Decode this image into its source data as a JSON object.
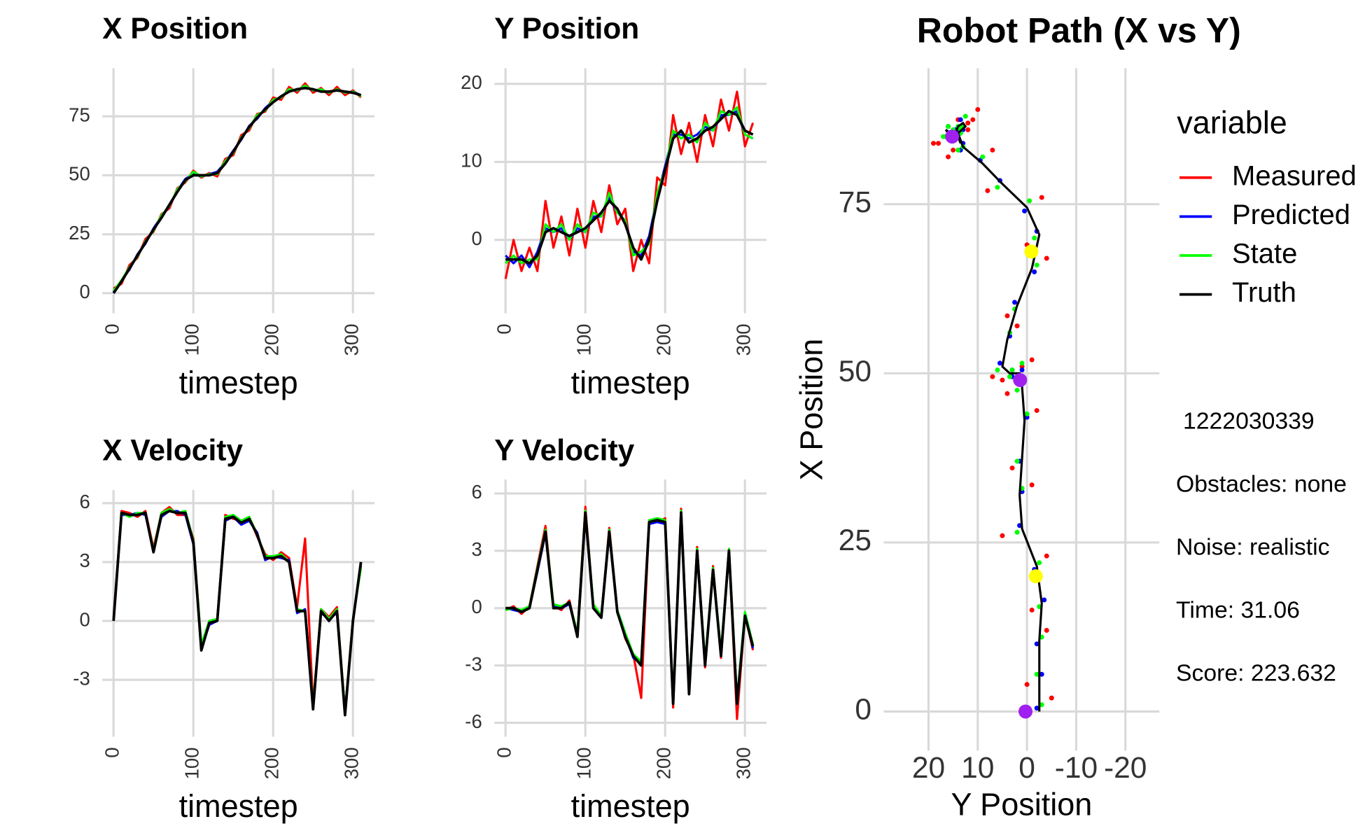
{
  "chart_data": [
    {
      "type": "line",
      "title": "X Position",
      "x_label": "timestep",
      "x": [
        0,
        10,
        20,
        30,
        40,
        50,
        60,
        70,
        80,
        90,
        100,
        110,
        120,
        130,
        140,
        150,
        160,
        170,
        180,
        190,
        200,
        210,
        220,
        230,
        240,
        250,
        260,
        270,
        280,
        290,
        300,
        310
      ],
      "series": [
        {
          "color": "#ff0000",
          "values": [
            2,
            4,
            12,
            15,
            23,
            26,
            33.5,
            36,
            44.5,
            47,
            52,
            49,
            51,
            49.5,
            57,
            58.5,
            67,
            69,
            76,
            77,
            83,
            82,
            87.5,
            85,
            89,
            85,
            87,
            84,
            87.5,
            84,
            86,
            83
          ]
        },
        {
          "color": "#0000ff",
          "values": [
            0.5,
            5.5,
            10,
            16.5,
            21,
            27.5,
            32.5,
            37,
            43.5,
            48.5,
            50.5,
            49.5,
            50.5,
            51.5,
            55.5,
            60.5,
            65,
            71,
            74,
            78.5,
            81.5,
            83,
            86,
            86,
            87.5,
            86,
            86,
            85,
            86.5,
            85,
            85.5,
            84
          ]
        },
        {
          "color": "#00ff00",
          "values": [
            1,
            5.5,
            11,
            15.5,
            22,
            26.5,
            33,
            37,
            44,
            47.5,
            51.5,
            49.5,
            50.5,
            50.5,
            56,
            59.5,
            66,
            70,
            75.5,
            77.5,
            82,
            83,
            86.5,
            86,
            88,
            86,
            86.5,
            85,
            86.5,
            85,
            85.5,
            83.5
          ]
        },
        {
          "color": "#000000",
          "values": [
            0,
            5,
            10.5,
            16,
            21.5,
            27,
            32,
            37.5,
            43,
            48,
            50,
            50,
            50,
            51,
            55,
            60,
            65.5,
            70.5,
            74.5,
            78,
            81,
            83.5,
            85.5,
            86.5,
            87,
            86.5,
            85.5,
            85.5,
            86,
            85.5,
            85,
            84
          ]
        }
      ],
      "xlim": [
        -14,
        327
      ],
      "ylim": [
        -8.5,
        95.4
      ],
      "xticks": [
        0,
        100,
        200,
        300
      ],
      "yticks": [
        0,
        25,
        50,
        75
      ],
      "grid": true
    },
    {
      "type": "line",
      "title": "Y Position",
      "x_label": "timestep",
      "x": [
        0,
        10,
        20,
        30,
        40,
        50,
        60,
        70,
        80,
        90,
        100,
        110,
        120,
        130,
        140,
        150,
        160,
        170,
        180,
        190,
        200,
        210,
        220,
        230,
        240,
        250,
        260,
        270,
        280,
        290,
        300,
        310
      ],
      "series": [
        {
          "color": "#ff0000",
          "values": [
            -5,
            0,
            -4,
            -1,
            -4,
            5,
            -1,
            3,
            -2,
            4,
            -1,
            5,
            1,
            7,
            2,
            4,
            -4,
            0,
            -3,
            8,
            7,
            16,
            11,
            15,
            10,
            16,
            12,
            18,
            14,
            19,
            12,
            15
          ]
        },
        {
          "color": "#0000ff",
          "values": [
            -2,
            -3,
            -2,
            -3.5,
            -1.5,
            1.5,
            1,
            1.5,
            0,
            1.5,
            1,
            3,
            3,
            5.5,
            3.5,
            2.5,
            -1.5,
            -2,
            0.5,
            5.5,
            9.5,
            13.5,
            13.5,
            13,
            13.5,
            14.5,
            14,
            16,
            16,
            16.5,
            13.5,
            13
          ]
        },
        {
          "color": "#00ff00",
          "values": [
            -3,
            -2,
            -3,
            -2.5,
            -2.5,
            2,
            1,
            2,
            0,
            2,
            1,
            3.5,
            3,
            6,
            3.5,
            2.5,
            -2,
            -1.5,
            -0.5,
            6,
            9,
            14,
            13,
            13.5,
            12.5,
            15,
            14,
            16.5,
            16,
            17,
            13.5,
            13
          ]
        },
        {
          "color": "#000000",
          "values": [
            -2.5,
            -2.5,
            -2.5,
            -3,
            -2,
            1,
            1.5,
            1,
            0.5,
            1,
            1.5,
            2.5,
            3.5,
            5,
            4,
            2,
            -1,
            -2.5,
            0,
            5,
            9,
            13,
            14,
            12.5,
            13,
            14,
            14.5,
            15.5,
            16.5,
            16,
            14,
            13.5
          ]
        }
      ],
      "xlim": [
        -14,
        327
      ],
      "ylim": [
        -9.4,
        22
      ],
      "xticks": [
        0,
        100,
        200,
        300
      ],
      "yticks": [
        0,
        10,
        20
      ],
      "grid": true
    },
    {
      "type": "line",
      "title": "X Velocity",
      "x_label": "timestep",
      "x": [
        0,
        10,
        20,
        30,
        40,
        50,
        60,
        70,
        80,
        90,
        100,
        110,
        120,
        130,
        140,
        150,
        160,
        170,
        180,
        190,
        200,
        210,
        220,
        230,
        240,
        250,
        260,
        270,
        280,
        290,
        300,
        310
      ],
      "series": [
        {
          "color": "#ff0000",
          "values": [
            0.2,
            5.6,
            5.5,
            5.3,
            5.6,
            3.7,
            5.5,
            5.8,
            5.4,
            5.4,
            4.2,
            -1.3,
            0,
            0.1,
            5.4,
            5.2,
            5.1,
            5.3,
            4.3,
            3.4,
            3.1,
            3.5,
            3.2,
            0.7,
            4.2,
            -4.3,
            0.6,
            0.2,
            0.7,
            -4.6,
            0.1,
            2.8
          ]
        },
        {
          "color": "#0000ff",
          "values": [
            0,
            5.4,
            5.4,
            5.5,
            5.4,
            3.6,
            5.3,
            5.6,
            5.6,
            5.4,
            3.9,
            -1.4,
            -0.2,
            0,
            5.1,
            5.3,
            4.9,
            5.1,
            4.5,
            3.1,
            3.3,
            3.2,
            3.1,
            0.4,
            0.6,
            -4.4,
            0.4,
            0.1,
            0.4,
            -4.7,
            0,
            2.9
          ]
        },
        {
          "color": "#00ff00",
          "values": [
            0.1,
            5.5,
            5.3,
            5.5,
            5.5,
            3.6,
            5.5,
            5.7,
            5.5,
            5.6,
            4.1,
            -1.2,
            0,
            0.1,
            5.3,
            5.4,
            5.1,
            5.3,
            4.4,
            3.3,
            3.3,
            3.4,
            3,
            0.6,
            0.5,
            -4.3,
            0.6,
            0.1,
            0.6,
            -4.6,
            0.1,
            2.7
          ]
        },
        {
          "color": "#000000",
          "values": [
            0,
            5.5,
            5.4,
            5.4,
            5.5,
            3.5,
            5.4,
            5.6,
            5.5,
            5.5,
            4,
            -1.5,
            -0.1,
            0,
            5.2,
            5.3,
            5,
            5.2,
            4.4,
            3.2,
            3.2,
            3.3,
            3,
            0.5,
            0.5,
            -4.5,
            0.5,
            0,
            0.5,
            -4.8,
            0,
            3
          ]
        }
      ],
      "xlim": [
        -14,
        327
      ],
      "ylim": [
        -5.9,
        6.67
      ],
      "xticks": [
        0,
        100,
        200,
        300
      ],
      "yticks": [
        -3,
        0,
        3,
        6
      ],
      "grid": true
    },
    {
      "type": "line",
      "title": "Y Velocity",
      "x_label": "timestep",
      "x": [
        0,
        10,
        20,
        30,
        40,
        50,
        60,
        70,
        80,
        90,
        100,
        110,
        120,
        130,
        140,
        150,
        160,
        170,
        180,
        190,
        200,
        210,
        220,
        230,
        240,
        250,
        260,
        270,
        280,
        290,
        300,
        310
      ],
      "series": [
        {
          "color": "#ff0000",
          "values": [
            -0.1,
            0.1,
            -0.3,
            0.1,
            2.2,
            4.3,
            0.1,
            -0.1,
            0.4,
            -1.4,
            5.3,
            0.1,
            -0.4,
            4.2,
            -0.1,
            -1.6,
            -2.4,
            -4.7,
            4.6,
            4.5,
            4.7,
            -5.2,
            5.2,
            -4.4,
            3.2,
            -3.1,
            2.2,
            -2.6,
            3.1,
            -5.8,
            -0.3,
            -2.2
          ]
        },
        {
          "color": "#0000ff",
          "values": [
            0,
            -0.1,
            -0.2,
            0,
            1.9,
            3.9,
            0.1,
            0,
            0.2,
            -1.4,
            4.8,
            0.1,
            -0.5,
            3.9,
            -0.2,
            -1.4,
            -2.6,
            -2.9,
            4.4,
            4.5,
            4.4,
            -4.9,
            4.9,
            -4.4,
            2.9,
            -2.9,
            1.9,
            -2.4,
            2.9,
            -4.9,
            -0.3,
            -2.1
          ]
        },
        {
          "color": "#00ff00",
          "values": [
            -0.1,
            0,
            -0.1,
            0.1,
            2.1,
            4.1,
            0.2,
            0.1,
            0.3,
            -1.3,
            5.1,
            0.2,
            -0.4,
            4.1,
            -0.1,
            -1.3,
            -2.4,
            -2.8,
            4.6,
            4.7,
            4.6,
            -4.8,
            5.1,
            -4.3,
            3.1,
            -2.8,
            2.1,
            -2.3,
            3.1,
            -4.8,
            -0.2,
            -1.9
          ]
        },
        {
          "color": "#000000",
          "values": [
            0,
            0,
            -0.2,
            0,
            2,
            4,
            0,
            0,
            0.3,
            -1.5,
            5,
            0,
            -0.5,
            4,
            -0.2,
            -1.5,
            -2.5,
            -3,
            4.5,
            4.6,
            4.5,
            -5,
            5,
            -4.5,
            3,
            -3,
            2,
            -2.5,
            3,
            -5,
            -0.4,
            -2
          ]
        }
      ],
      "xlim": [
        -14,
        327
      ],
      "ylim": [
        -6.73,
        6.73
      ],
      "xticks": [
        0,
        100,
        200,
        300
      ],
      "yticks": [
        -6,
        -3,
        0,
        3,
        6
      ],
      "grid": true
    },
    {
      "type": "scatter",
      "title": "Robot Path (X vs Y)",
      "x_label": "Y Position",
      "y_label": "X Position",
      "legend_title": "variable",
      "series": [
        {
          "name": "Measured",
          "color": "#ff0000",
          "x": [
            -5,
            0,
            -4,
            -1,
            -4,
            5,
            -1,
            3,
            -2,
            4,
            -1,
            5,
            1,
            7,
            2,
            4,
            -4,
            0,
            -3,
            8,
            7,
            16,
            11,
            15,
            10,
            16,
            12,
            18,
            14,
            19,
            12,
            15
          ],
          "values": [
            2,
            4,
            12,
            15,
            23,
            26,
            33.5,
            36,
            44.5,
            47,
            52,
            49,
            51,
            49.5,
            57,
            58.5,
            67,
            69,
            76,
            77,
            83,
            82,
            87.5,
            85,
            89,
            85,
            87,
            84,
            87.5,
            84,
            86,
            83
          ]
        },
        {
          "name": "Predicted",
          "color": "#0000ff",
          "x": [
            -2,
            -3,
            -2,
            -3.5,
            -1.5,
            1.5,
            1,
            1.5,
            0,
            1.5,
            1,
            3,
            3,
            5.5,
            3.5,
            2.5,
            -1.5,
            -2,
            0.5,
            5.5,
            9.5,
            13.5,
            13.5,
            13,
            13.5,
            14.5,
            14,
            16,
            16,
            16.5,
            13.5,
            13
          ],
          "values": [
            0.5,
            5.5,
            10,
            16.5,
            21,
            27.5,
            32.5,
            37,
            43.5,
            48.5,
            50.5,
            49.5,
            50.5,
            51.5,
            55.5,
            60.5,
            65,
            71,
            74,
            78.5,
            81.5,
            83,
            86,
            86,
            87.5,
            86,
            86,
            85,
            86.5,
            85,
            85.5,
            84
          ]
        },
        {
          "name": "State",
          "color": "#00ff00",
          "x": [
            -3,
            -2,
            -3,
            -2.5,
            -2.5,
            2,
            1,
            2,
            0,
            2,
            1,
            3.5,
            3,
            6,
            3.5,
            2.5,
            -2,
            -1.5,
            -0.5,
            6,
            9,
            14,
            13,
            13.5,
            12.5,
            15,
            14,
            16.5,
            16,
            17,
            13.5,
            13
          ],
          "values": [
            1,
            5.5,
            11,
            15.5,
            22,
            26.5,
            33,
            37,
            44,
            47.5,
            51.5,
            49.5,
            50.5,
            50.5,
            56,
            59.5,
            66,
            70,
            75.5,
            77.5,
            82,
            83,
            86.5,
            86,
            88,
            86,
            86.5,
            85,
            86.5,
            85,
            85.5,
            83.5
          ]
        },
        {
          "name": "Truth",
          "color": "#000000",
          "mode": "line",
          "x": [
            -2.5,
            -2.5,
            -2.5,
            -3,
            -2,
            1,
            1.5,
            1,
            0.5,
            1,
            1.5,
            2.5,
            3.5,
            5,
            4,
            2,
            -1,
            -2.5,
            0,
            5,
            9,
            13,
            14,
            12.5,
            13,
            14,
            14.5,
            15.5,
            16.5,
            16,
            14,
            13.5
          ],
          "values": [
            0,
            5,
            10.5,
            16,
            21.5,
            27,
            32,
            37.5,
            43,
            48,
            50,
            50,
            50,
            51,
            55,
            60,
            65.5,
            70.5,
            74.5,
            78,
            81,
            83.5,
            85.5,
            86.5,
            87,
            86.5,
            85.5,
            85.5,
            86,
            85.5,
            85,
            84
          ]
        }
      ],
      "highlights": [
        {
          "x": 0.3,
          "y": 0,
          "color": "#a020f0"
        },
        {
          "x": 1.4,
          "y": 49,
          "color": "#a020f0"
        },
        {
          "x": 15.2,
          "y": 85,
          "color": "#a020f0"
        },
        {
          "x": -0.9,
          "y": 68,
          "color": "#ffff00"
        },
        {
          "x": -1.8,
          "y": 20,
          "color": "#ffff00"
        }
      ],
      "annotations": [
        "1222030339",
        "Obstacles: none",
        "Noise: realistic",
        "Time: 31.06",
        "Score: 223.632"
      ],
      "xlim": [
        29.1,
        -26.9
      ],
      "ylim": [
        -5.8,
        95.1
      ],
      "xticks": [
        20,
        10,
        0,
        -10,
        -20
      ],
      "yticks": [
        0,
        25,
        50,
        75
      ],
      "grid": true
    }
  ]
}
